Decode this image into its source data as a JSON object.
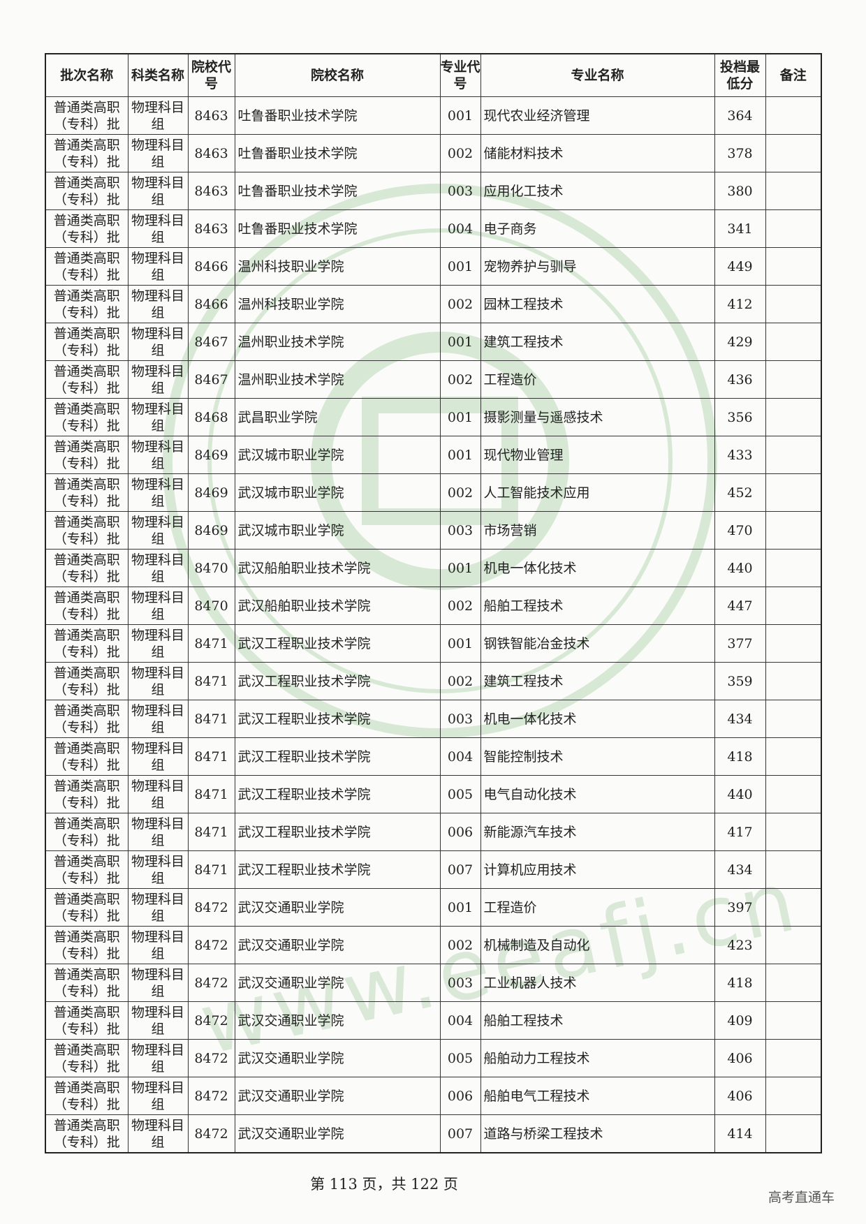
{
  "headers": [
    "批次名称",
    "科类名称",
    "院校代号",
    "院校名称",
    "专业代号",
    "专业名称",
    "投档最低分",
    "备注"
  ],
  "batch": "普通类高职（专科）批",
  "category": "物理科目组",
  "rows": [
    [
      "8463",
      "吐鲁番职业技术学院",
      "001",
      "现代农业经济管理",
      "364"
    ],
    [
      "8463",
      "吐鲁番职业技术学院",
      "002",
      "储能材料技术",
      "378"
    ],
    [
      "8463",
      "吐鲁番职业技术学院",
      "003",
      "应用化工技术",
      "380"
    ],
    [
      "8463",
      "吐鲁番职业技术学院",
      "004",
      "电子商务",
      "341"
    ],
    [
      "8466",
      "温州科技职业学院",
      "001",
      "宠物养护与驯导",
      "449"
    ],
    [
      "8466",
      "温州科技职业学院",
      "002",
      "园林工程技术",
      "412"
    ],
    [
      "8467",
      "温州职业技术学院",
      "001",
      "建筑工程技术",
      "429"
    ],
    [
      "8467",
      "温州职业技术学院",
      "002",
      "工程造价",
      "436"
    ],
    [
      "8468",
      "武昌职业学院",
      "001",
      "摄影测量与遥感技术",
      "356"
    ],
    [
      "8469",
      "武汉城市职业学院",
      "001",
      "现代物业管理",
      "433"
    ],
    [
      "8469",
      "武汉城市职业学院",
      "002",
      "人工智能技术应用",
      "452"
    ],
    [
      "8469",
      "武汉城市职业学院",
      "003",
      "市场营销",
      "470"
    ],
    [
      "8470",
      "武汉船舶职业技术学院",
      "001",
      "机电一体化技术",
      "440"
    ],
    [
      "8470",
      "武汉船舶职业技术学院",
      "002",
      "船舶工程技术",
      "447"
    ],
    [
      "8471",
      "武汉工程职业技术学院",
      "001",
      "钢铁智能冶金技术",
      "377"
    ],
    [
      "8471",
      "武汉工程职业技术学院",
      "002",
      "建筑工程技术",
      "359"
    ],
    [
      "8471",
      "武汉工程职业技术学院",
      "003",
      "机电一体化技术",
      "434"
    ],
    [
      "8471",
      "武汉工程职业技术学院",
      "004",
      "智能控制技术",
      "418"
    ],
    [
      "8471",
      "武汉工程职业技术学院",
      "005",
      "电气自动化技术",
      "440"
    ],
    [
      "8471",
      "武汉工程职业技术学院",
      "006",
      "新能源汽车技术",
      "417"
    ],
    [
      "8471",
      "武汉工程职业技术学院",
      "007",
      "计算机应用技术",
      "434"
    ],
    [
      "8472",
      "武汉交通职业学院",
      "001",
      "工程造价",
      "397"
    ],
    [
      "8472",
      "武汉交通职业学院",
      "002",
      "机械制造及自动化",
      "423"
    ],
    [
      "8472",
      "武汉交通职业学院",
      "003",
      "工业机器人技术",
      "418"
    ],
    [
      "8472",
      "武汉交通职业学院",
      "004",
      "船舶工程技术",
      "409"
    ],
    [
      "8472",
      "武汉交通职业学院",
      "005",
      "船舶动力工程技术",
      "406"
    ],
    [
      "8472",
      "武汉交通职业学院",
      "006",
      "船舶电气工程技术",
      "406"
    ],
    [
      "8472",
      "武汉交通职业学院",
      "007",
      "道路与桥梁工程技术",
      "414"
    ]
  ],
  "footer": {
    "page": "第 113 页，共 122 页",
    "brand": "高考直通车"
  },
  "watermark": {
    "url": "www.eeafj.cn",
    "color": "#7fbf7f"
  }
}
